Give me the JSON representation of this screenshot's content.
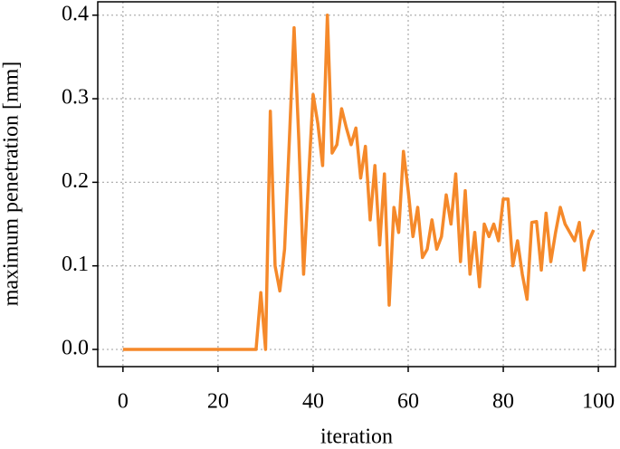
{
  "chart_data": {
    "type": "line",
    "xlabel": "iteration",
    "ylabel": "maximum penetration [mm]",
    "x": [
      0,
      1,
      2,
      3,
      4,
      5,
      6,
      7,
      8,
      9,
      10,
      11,
      12,
      13,
      14,
      15,
      16,
      17,
      18,
      19,
      20,
      21,
      22,
      23,
      24,
      25,
      26,
      27,
      28,
      29,
      30,
      31,
      32,
      33,
      34,
      35,
      36,
      37,
      38,
      39,
      40,
      41,
      42,
      43,
      44,
      45,
      46,
      47,
      48,
      49,
      50,
      51,
      52,
      53,
      54,
      55,
      56,
      57,
      58,
      59,
      60,
      61,
      62,
      63,
      64,
      65,
      66,
      67,
      68,
      69,
      70,
      71,
      72,
      73,
      74,
      75,
      76,
      77,
      78,
      79,
      80,
      81,
      82,
      83,
      84,
      85,
      86,
      87,
      88,
      89,
      90,
      91,
      92,
      93,
      94,
      95,
      96,
      97,
      98,
      99
    ],
    "series": [
      {
        "color": "#f5892a",
        "values": [
          0,
          0,
          0,
          0,
          0,
          0,
          0,
          0,
          0,
          0,
          0,
          0,
          0,
          0,
          0,
          0,
          0,
          0,
          0,
          0,
          0,
          0,
          0,
          0,
          0,
          0,
          0,
          0,
          0,
          0.068,
          0,
          0.285,
          0.1,
          0.07,
          0.12,
          0.25,
          0.385,
          0.25,
          0.09,
          0.2,
          0.305,
          0.27,
          0.22,
          0.4,
          0.235,
          0.245,
          0.288,
          0.265,
          0.245,
          0.265,
          0.205,
          0.243,
          0.155,
          0.22,
          0.125,
          0.21,
          0.053,
          0.17,
          0.14,
          0.237,
          0.19,
          0.135,
          0.17,
          0.11,
          0.12,
          0.155,
          0.12,
          0.135,
          0.185,
          0.15,
          0.21,
          0.105,
          0.19,
          0.09,
          0.14,
          0.075,
          0.15,
          0.135,
          0.15,
          0.13,
          0.18,
          0.18,
          0.1,
          0.13,
          0.09,
          0.06,
          0.152,
          0.153,
          0.095,
          0.163,
          0.105,
          0.14,
          0.17,
          0.15,
          0.14,
          0.13,
          0.152,
          0.095,
          0.13,
          0.143
        ]
      }
    ],
    "xlim": [
      -5.3,
      103.6
    ],
    "ylim": [
      -0.0206,
      0.416
    ],
    "xticks": [
      0,
      20,
      40,
      60,
      80,
      100
    ],
    "yticks": [
      {
        "value": 0,
        "label": "0.0"
      },
      0.1,
      0.2,
      0.3,
      0.4
    ],
    "grid": true
  }
}
